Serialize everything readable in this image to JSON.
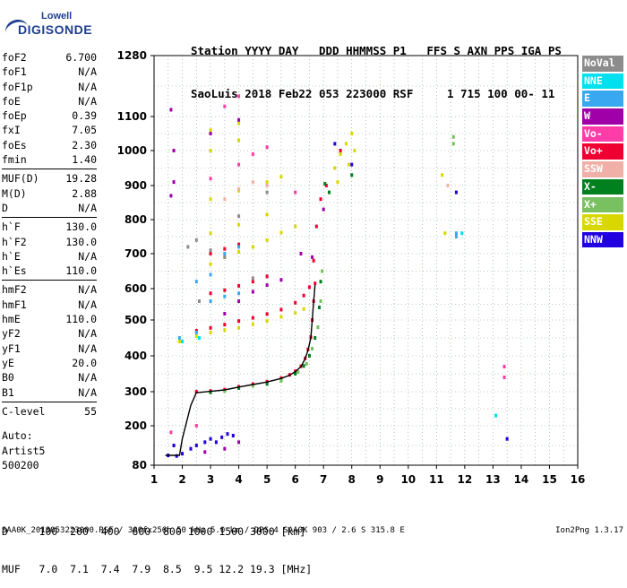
{
  "logo": {
    "line1": "Lowell",
    "line2": "DIGISONDE"
  },
  "header": {
    "row1": "Station YYYY DAY   DDD HHMMSS P1   FFS S AXN PPS IGA PS",
    "row2": "SaoLuis 2018 Feb22 053 223000 RSF     1 715 100 00- 11"
  },
  "params": [
    {
      "group": [
        {
          "label": "foF2",
          "value": "6.700"
        },
        {
          "label": "foF1",
          "value": "N/A"
        },
        {
          "label": "foF1p",
          "value": "N/A"
        },
        {
          "label": "foE",
          "value": "N/A"
        },
        {
          "label": "foEp",
          "value": "0.39"
        },
        {
          "label": "fxI",
          "value": "7.05"
        },
        {
          "label": "foEs",
          "value": "2.30"
        },
        {
          "label": "fmin",
          "value": "1.40"
        }
      ]
    },
    {
      "group": [
        {
          "label": "MUF(D)",
          "value": "19.28"
        },
        {
          "label": "M(D)",
          "value": "2.88"
        },
        {
          "label": "D",
          "value": "N/A"
        }
      ]
    },
    {
      "group": [
        {
          "label": "h`F",
          "value": "130.0"
        },
        {
          "label": "h`F2",
          "value": "130.0"
        },
        {
          "label": "h`E",
          "value": "N/A"
        },
        {
          "label": "h`Es",
          "value": "110.0"
        }
      ]
    },
    {
      "group": [
        {
          "label": "hmF2",
          "value": "N/A"
        },
        {
          "label": "hmF1",
          "value": "N/A"
        },
        {
          "label": "hmE",
          "value": "110.0"
        },
        {
          "label": "yF2",
          "value": "N/A"
        },
        {
          "label": "yF1",
          "value": "N/A"
        },
        {
          "label": "yE",
          "value": "20.0"
        },
        {
          "label": "B0",
          "value": "N/A"
        },
        {
          "label": "B1",
          "value": "N/A"
        }
      ]
    },
    {
      "group": [
        {
          "label": "C-level",
          "value": "55"
        }
      ]
    }
  ],
  "auto": {
    "line1": "Auto:",
    "line2": "Artist5",
    "line3": "500200"
  },
  "legend": [
    {
      "label": "NoVal",
      "color": "#8c8c8c"
    },
    {
      "label": "NNE",
      "color": "#00e0ee"
    },
    {
      "label": "E",
      "color": "#3aa8f0"
    },
    {
      "label": "W",
      "color": "#a000a8"
    },
    {
      "label": "Vo-",
      "color": "#ff3ca8"
    },
    {
      "label": "Vo+",
      "color": "#f00030"
    },
    {
      "label": "SSW",
      "color": "#f0b0a8"
    },
    {
      "label": "X-",
      "color": "#00801e"
    },
    {
      "label": "X+",
      "color": "#78c060"
    },
    {
      "label": "SSE",
      "color": "#d8d800"
    },
    {
      "label": "NNW",
      "color": "#2000e0"
    }
  ],
  "muf_table": {
    "row1": "D     100  200  400  600  800 1000 1500 3000 [km]",
    "row2": "MUF   7.0  7.1  7.4  7.9  8.5  9.5 12.2 19.3 [MHz]"
  },
  "footer": "SAA0K_2018053223000.RSF / 300fx256h 50 kHz 5.0 km / DPS-4 SAA0K 903 / 2.6 S 315.8 E",
  "version": "Ion2Png 1.3.17",
  "chart_data": {
    "type": "scatter",
    "title": "",
    "xlabel": "",
    "ylabel": "",
    "x_ticks": [
      1,
      2,
      3,
      4,
      5,
      6,
      7,
      8,
      9,
      10,
      11,
      12,
      13,
      14,
      15,
      16
    ],
    "y_ticks": [
      80,
      200,
      300,
      400,
      500,
      600,
      700,
      800,
      900,
      1000,
      1100,
      1280
    ],
    "y_tick_values": [
      80,
      200,
      300,
      400,
      500,
      600,
      700,
      800,
      900,
      1000,
      1100,
      1280
    ],
    "xlim": [
      1,
      16
    ],
    "ylim": [
      80,
      1280
    ],
    "grid": true,
    "trace": {
      "name": "",
      "x": [
        1.4,
        1.9,
        2.0,
        2.3,
        2.5,
        2.6,
        3.0,
        3.5,
        4.0,
        4.5,
        5.0,
        5.5,
        5.8,
        6.0,
        6.2,
        6.35,
        6.45,
        6.55,
        6.6,
        6.65,
        6.7
      ],
      "y": [
        110,
        110,
        160,
        260,
        298,
        298,
        301,
        305,
        313,
        320,
        327,
        337,
        346,
        356,
        370,
        392,
        416,
        450,
        500,
        560,
        610
      ]
    },
    "series": [
      {
        "name": "Vo+",
        "color": "#f00030",
        "points": [
          [
            2.5,
            300
          ],
          [
            3.0,
            302
          ],
          [
            3.5,
            306
          ],
          [
            4.0,
            314
          ],
          [
            4.5,
            321
          ],
          [
            5.0,
            328
          ],
          [
            5.5,
            338
          ],
          [
            5.8,
            347
          ],
          [
            6.0,
            357
          ],
          [
            6.2,
            371
          ],
          [
            6.35,
            393
          ],
          [
            6.45,
            418
          ],
          [
            6.55,
            452
          ],
          [
            6.6,
            500
          ],
          [
            6.65,
            560
          ],
          [
            6.7,
            615
          ],
          [
            2.5,
            470
          ],
          [
            3.0,
            478
          ],
          [
            3.5,
            487
          ],
          [
            4.0,
            497
          ],
          [
            4.5,
            507
          ],
          [
            5.0,
            519
          ],
          [
            5.5,
            533
          ],
          [
            6.0,
            555
          ],
          [
            6.3,
            578
          ],
          [
            6.5,
            604
          ],
          [
            6.65,
            680
          ],
          [
            6.75,
            780
          ],
          [
            6.9,
            860
          ],
          [
            7.1,
            900
          ],
          [
            7.6,
            1000
          ],
          [
            3.0,
            585
          ],
          [
            3.5,
            595
          ],
          [
            4.0,
            608
          ],
          [
            4.5,
            620
          ],
          [
            5.0,
            635
          ],
          [
            3.0,
            700
          ],
          [
            3.5,
            714
          ],
          [
            4.0,
            727
          ]
        ]
      },
      {
        "name": "X-",
        "color": "#00801e",
        "points": [
          [
            3.0,
            298
          ],
          [
            4.0,
            310
          ],
          [
            5.0,
            322
          ],
          [
            5.5,
            332
          ],
          [
            6.0,
            350
          ],
          [
            6.3,
            372
          ],
          [
            6.5,
            400
          ],
          [
            6.7,
            450
          ],
          [
            6.85,
            540
          ],
          [
            6.9,
            620
          ],
          [
            7.05,
            905
          ],
          [
            7.2,
            880
          ],
          [
            8.0,
            930
          ]
        ]
      },
      {
        "name": "X+",
        "color": "#78c060",
        "points": [
          [
            3.5,
            302
          ],
          [
            4.5,
            316
          ],
          [
            5.5,
            330
          ],
          [
            6.1,
            355
          ],
          [
            6.4,
            378
          ],
          [
            6.6,
            420
          ],
          [
            6.8,
            480
          ],
          [
            6.9,
            560
          ],
          [
            6.95,
            650
          ],
          [
            11.6,
            1040
          ],
          [
            11.6,
            1020
          ]
        ]
      },
      {
        "name": "SSE",
        "color": "#d8d800",
        "points": [
          [
            1.9,
            440
          ],
          [
            2.5,
            455
          ],
          [
            3.0,
            465
          ],
          [
            3.5,
            472
          ],
          [
            4.0,
            478
          ],
          [
            4.5,
            488
          ],
          [
            5.0,
            497
          ],
          [
            5.5,
            510
          ],
          [
            6.0,
            522
          ],
          [
            6.3,
            535
          ],
          [
            3.0,
            670
          ],
          [
            3.5,
            690
          ],
          [
            4.0,
            705
          ],
          [
            4.5,
            720
          ],
          [
            5.0,
            740
          ],
          [
            5.5,
            762
          ],
          [
            6.0,
            780
          ],
          [
            3.0,
            760
          ],
          [
            4.0,
            785
          ],
          [
            5.0,
            815
          ],
          [
            3.0,
            860
          ],
          [
            4.0,
            885
          ],
          [
            5.0,
            910
          ],
          [
            5.5,
            925
          ],
          [
            3.0,
            1000
          ],
          [
            4.0,
            1030
          ],
          [
            3.0,
            1060
          ],
          [
            4.0,
            1080
          ],
          [
            7.4,
            950
          ],
          [
            7.6,
            990
          ],
          [
            7.8,
            1020
          ],
          [
            8.0,
            1050
          ],
          [
            8.1,
            1000
          ],
          [
            7.9,
            960
          ],
          [
            7.5,
            910
          ],
          [
            11.2,
            930
          ],
          [
            11.3,
            760
          ]
        ]
      },
      {
        "name": "E",
        "color": "#3aa8f0",
        "points": [
          [
            1.9,
            450
          ],
          [
            2.5,
            465
          ],
          [
            3.0,
            560
          ],
          [
            3.5,
            575
          ],
          [
            4.0,
            585
          ],
          [
            2.5,
            620
          ],
          [
            3.0,
            640
          ],
          [
            3.5,
            700
          ],
          [
            4.0,
            720
          ],
          [
            11.7,
            760
          ],
          [
            11.7,
            750
          ]
        ]
      },
      {
        "name": "NNE",
        "color": "#00e0ee",
        "points": [
          [
            2.0,
            440
          ],
          [
            2.6,
            450
          ],
          [
            13.1,
            230
          ],
          [
            11.9,
            760
          ]
        ]
      },
      {
        "name": "W",
        "color": "#a000a8",
        "points": [
          [
            1.6,
            1120
          ],
          [
            1.7,
            1000
          ],
          [
            1.7,
            910
          ],
          [
            1.6,
            870
          ],
          [
            3.5,
            520
          ],
          [
            4.0,
            560
          ],
          [
            4.5,
            590
          ],
          [
            5.0,
            610
          ],
          [
            5.5,
            625
          ],
          [
            3.0,
            1050
          ],
          [
            4.0,
            1090
          ],
          [
            7.0,
            830
          ],
          [
            6.2,
            700
          ],
          [
            6.6,
            690
          ],
          [
            3.5,
            130
          ],
          [
            4.0,
            150
          ],
          [
            2.8,
            120
          ]
        ]
      },
      {
        "name": "Vo-",
        "color": "#ff3ca8",
        "points": [
          [
            3.0,
            920
          ],
          [
            4.0,
            960
          ],
          [
            4.5,
            990
          ],
          [
            5.0,
            1010
          ],
          [
            3.5,
            1130
          ],
          [
            4.0,
            1160
          ],
          [
            6.0,
            880
          ],
          [
            13.4,
            370
          ],
          [
            13.4,
            340
          ],
          [
            1.6,
            180
          ],
          [
            2.5,
            200
          ]
        ]
      },
      {
        "name": "SSW",
        "color": "#f0b0a8",
        "points": [
          [
            4.0,
            890
          ],
          [
            4.5,
            910
          ],
          [
            5.0,
            900
          ],
          [
            3.5,
            860
          ],
          [
            11.4,
            900
          ]
        ]
      },
      {
        "name": "NNW",
        "color": "#2000e0",
        "points": [
          [
            2.3,
            130
          ],
          [
            2.5,
            140
          ],
          [
            2.8,
            150
          ],
          [
            3.0,
            160
          ],
          [
            3.2,
            150
          ],
          [
            3.4,
            165
          ],
          [
            3.6,
            175
          ],
          [
            3.8,
            170
          ],
          [
            2.0,
            115
          ],
          [
            1.5,
            110
          ],
          [
            1.8,
            108
          ],
          [
            7.4,
            1020
          ],
          [
            8.0,
            960
          ],
          [
            11.7,
            880
          ],
          [
            13.5,
            160
          ],
          [
            1.7,
            140
          ]
        ]
      },
      {
        "name": "NoVal",
        "color": "#8c8c8c",
        "points": [
          [
            2.2,
            720
          ],
          [
            2.5,
            740
          ],
          [
            3.0,
            710
          ],
          [
            3.5,
            690
          ],
          [
            4.0,
            810
          ],
          [
            4.5,
            630
          ],
          [
            5.0,
            880
          ],
          [
            2.6,
            560
          ]
        ]
      }
    ]
  }
}
